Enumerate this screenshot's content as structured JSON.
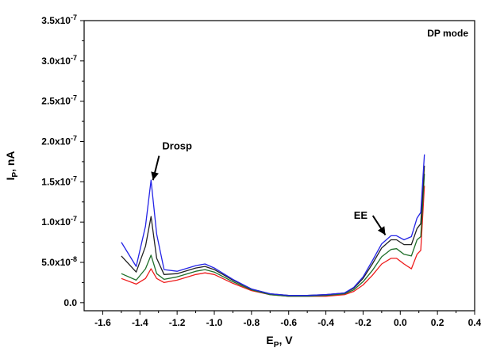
{
  "chart_data": {
    "type": "line",
    "title": "",
    "mode_label": "DP mode",
    "xlabel": {
      "main": "E",
      "sub": "P",
      "rest": ", V"
    },
    "ylabel": {
      "main": "I",
      "sub": "P",
      "rest": ", nA"
    },
    "xlim": [
      -1.7,
      0.4
    ],
    "ylim": [
      -1e-08,
      3.5e-07
    ],
    "x_ticks": [
      -1.6,
      -1.4,
      -1.2,
      -1.0,
      -0.8,
      -0.6,
      -0.4,
      -0.2,
      0.0,
      0.2,
      0.4
    ],
    "x_tick_labels": [
      "-1.6",
      "-1.4",
      "-1.2",
      "-1.0",
      "-0.8",
      "-0.6",
      "-0.4",
      "-0.2",
      "0.0",
      "0.2",
      "0.4"
    ],
    "y_ticks": [
      0,
      5e-08,
      1e-07,
      1.5e-07,
      2e-07,
      2.5e-07,
      3e-07,
      3.5e-07
    ],
    "y_tick_labels": [
      {
        "main": "0.0",
        "exp": ""
      },
      {
        "main": "5.0x10",
        "exp": "-8"
      },
      {
        "main": "1.0x10",
        "exp": "-7"
      },
      {
        "main": "1.5x10",
        "exp": "-7"
      },
      {
        "main": "2.0x10",
        "exp": "-7"
      },
      {
        "main": "2.5x10",
        "exp": "-7"
      },
      {
        "main": "3.0x10",
        "exp": "-7"
      },
      {
        "main": "3.5x10",
        "exp": "-7"
      }
    ],
    "annotations": [
      {
        "text": "Drosp",
        "x": -1.28,
        "y": 1.9e-07,
        "arrow_to": [
          -1.33,
          1.52e-07
        ]
      },
      {
        "text": "EE",
        "x": -0.25,
        "y": 1.04e-07,
        "arrow_to": [
          -0.08,
          8.4e-08
        ]
      }
    ],
    "series": [
      {
        "color": "#ee1c1c",
        "x": [
          -1.5,
          -1.42,
          -1.37,
          -1.34,
          -1.31,
          -1.27,
          -1.2,
          -1.1,
          -1.05,
          -1.0,
          -0.9,
          -0.8,
          -0.7,
          -0.6,
          -0.5,
          -0.4,
          -0.3,
          -0.25,
          -0.2,
          -0.15,
          -0.1,
          -0.05,
          -0.02,
          0.02,
          0.06,
          0.09,
          0.11,
          0.13
        ],
        "y": [
          3e-08,
          2.3e-08,
          3e-08,
          4.2e-08,
          3e-08,
          2.5e-08,
          2.8e-08,
          3.5e-08,
          3.7e-08,
          3.5e-08,
          2.4e-08,
          1.5e-08,
          1e-08,
          8e-09,
          8e-09,
          8e-09,
          1e-08,
          1.4e-08,
          2.2e-08,
          3.4e-08,
          4.8e-08,
          5.5e-08,
          5.5e-08,
          4.8e-08,
          4.2e-08,
          6e-08,
          6.5e-08,
          1.45e-07
        ]
      },
      {
        "color": "#1f6f2a",
        "x": [
          -1.5,
          -1.42,
          -1.37,
          -1.34,
          -1.31,
          -1.27,
          -1.2,
          -1.1,
          -1.05,
          -1.0,
          -0.9,
          -0.8,
          -0.7,
          -0.6,
          -0.5,
          -0.4,
          -0.3,
          -0.25,
          -0.2,
          -0.15,
          -0.1,
          -0.05,
          -0.02,
          0.02,
          0.06,
          0.09,
          0.11,
          0.13
        ],
        "y": [
          3.6e-08,
          2.8e-08,
          4.2e-08,
          5.9e-08,
          3.6e-08,
          2.9e-08,
          3.2e-08,
          3.9e-08,
          4.1e-08,
          3.8e-08,
          2.6e-08,
          1.6e-08,
          1e-08,
          8e-09,
          8e-09,
          9e-09,
          1.1e-08,
          1.6e-08,
          2.6e-08,
          4e-08,
          5.7e-08,
          6.6e-08,
          6.7e-08,
          6e-08,
          5.8e-08,
          7.8e-08,
          8.2e-08,
          1.6e-07
        ]
      },
      {
        "color": "#222222",
        "x": [
          -1.5,
          -1.42,
          -1.37,
          -1.34,
          -1.31,
          -1.27,
          -1.2,
          -1.1,
          -1.05,
          -1.0,
          -0.9,
          -0.8,
          -0.7,
          -0.6,
          -0.5,
          -0.4,
          -0.3,
          -0.25,
          -0.2,
          -0.15,
          -0.1,
          -0.05,
          -0.02,
          0.02,
          0.06,
          0.09,
          0.11,
          0.13
        ],
        "y": [
          5.8e-08,
          3.8e-08,
          7e-08,
          1.07e-07,
          5.5e-08,
          3.5e-08,
          3.6e-08,
          4.3e-08,
          4.5e-08,
          4.1e-08,
          2.8e-08,
          1.7e-08,
          1.1e-08,
          9e-09,
          9e-09,
          1e-08,
          1.2e-08,
          1.8e-08,
          3e-08,
          4.8e-08,
          6.8e-08,
          7.8e-08,
          7.8e-08,
          7.2e-08,
          7.2e-08,
          9.2e-08,
          9.8e-08,
          1.7e-07
        ]
      },
      {
        "color": "#2424e6",
        "x": [
          -1.5,
          -1.42,
          -1.37,
          -1.34,
          -1.31,
          -1.27,
          -1.2,
          -1.1,
          -1.05,
          -1.0,
          -0.9,
          -0.8,
          -0.7,
          -0.6,
          -0.5,
          -0.4,
          -0.3,
          -0.25,
          -0.2,
          -0.15,
          -0.1,
          -0.05,
          -0.02,
          0.02,
          0.06,
          0.09,
          0.11,
          0.13
        ],
        "y": [
          7.5e-08,
          4.5e-08,
          9.5e-08,
          1.52e-07,
          8.5e-08,
          4.1e-08,
          3.9e-08,
          4.6e-08,
          4.8e-08,
          4.3e-08,
          2.9e-08,
          1.7e-08,
          1.1e-08,
          9e-09,
          9e-09,
          1e-08,
          1.2e-08,
          1.9e-08,
          3.2e-08,
          5.2e-08,
          7.3e-08,
          8.3e-08,
          8.3e-08,
          7.8e-08,
          8.2e-08,
          1.05e-07,
          1.12e-07,
          1.84e-07
        ]
      }
    ]
  }
}
